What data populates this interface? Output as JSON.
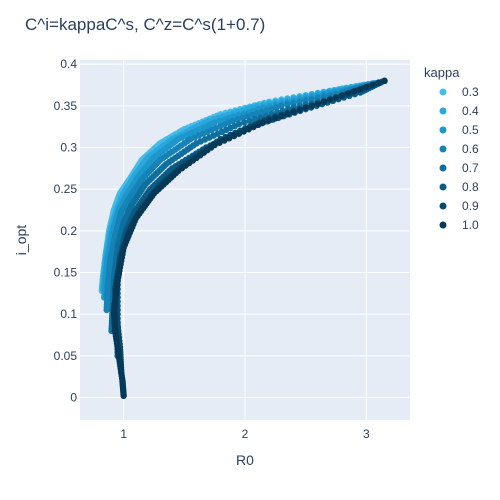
{
  "chart_data": {
    "type": "scatter",
    "title": "C^i=kappaC^s, C^z=C^s(1+0.7)",
    "xlabel": "R0",
    "ylabel": "i_opt",
    "xlim": [
      0.64,
      3.36
    ],
    "ylim": [
      -0.027,
      0.405
    ],
    "x_ticks": [
      1,
      2,
      3
    ],
    "y_ticks": [
      0,
      0.05,
      0.1,
      0.15,
      0.2,
      0.25,
      0.3,
      0.35,
      0.4
    ],
    "x_tick_labels": [
      "1",
      "2",
      "3"
    ],
    "y_tick_labels": [
      "0",
      "0.05",
      "0.1",
      "0.15",
      "0.2",
      "0.25",
      "0.3",
      "0.35",
      "0.4"
    ],
    "grid": true,
    "legend_title": "kappa",
    "legend_placement": "right",
    "series": [
      {
        "name": "0.3",
        "color": "#46bbe8",
        "points": [
          [
            0.82,
            0.128
          ],
          [
            0.83,
            0.145
          ],
          [
            0.85,
            0.17
          ],
          [
            0.88,
            0.2
          ],
          [
            0.92,
            0.225
          ],
          [
            0.97,
            0.245
          ],
          [
            1.05,
            0.262
          ],
          [
            1.15,
            0.285
          ],
          [
            1.3,
            0.305
          ],
          [
            1.5,
            0.322
          ],
          [
            1.8,
            0.34
          ],
          [
            2.2,
            0.355
          ],
          [
            2.7,
            0.368
          ],
          [
            3.05,
            0.377
          ]
        ]
      },
      {
        "name": "0.4",
        "color": "#2aa8de",
        "points": [
          [
            0.83,
            0.13
          ],
          [
            0.84,
            0.15
          ],
          [
            0.86,
            0.175
          ],
          [
            0.9,
            0.205
          ],
          [
            0.95,
            0.228
          ],
          [
            1.0,
            0.245
          ],
          [
            1.1,
            0.268
          ],
          [
            1.2,
            0.288
          ],
          [
            1.4,
            0.31
          ],
          [
            1.7,
            0.332
          ],
          [
            2.1,
            0.35
          ],
          [
            2.6,
            0.365
          ],
          [
            3.06,
            0.377
          ]
        ]
      },
      {
        "name": "0.5",
        "color": "#1d96cc",
        "points": [
          [
            0.84,
            0.12
          ],
          [
            0.85,
            0.145
          ],
          [
            0.87,
            0.17
          ],
          [
            0.91,
            0.2
          ],
          [
            0.96,
            0.225
          ],
          [
            1.02,
            0.242
          ],
          [
            1.12,
            0.265
          ],
          [
            1.25,
            0.288
          ],
          [
            1.45,
            0.31
          ],
          [
            1.75,
            0.33
          ],
          [
            2.15,
            0.348
          ],
          [
            2.65,
            0.364
          ],
          [
            3.08,
            0.377
          ]
        ]
      },
      {
        "name": "0.6",
        "color": "#1583b7",
        "points": [
          [
            0.86,
            0.105
          ],
          [
            0.87,
            0.135
          ],
          [
            0.89,
            0.165
          ],
          [
            0.93,
            0.195
          ],
          [
            0.98,
            0.222
          ],
          [
            1.05,
            0.24
          ],
          [
            1.15,
            0.262
          ],
          [
            1.3,
            0.285
          ],
          [
            1.55,
            0.31
          ],
          [
            1.9,
            0.332
          ],
          [
            2.3,
            0.35
          ],
          [
            2.8,
            0.366
          ],
          [
            3.1,
            0.378
          ]
        ]
      },
      {
        "name": "0.7",
        "color": "#0f6f9e",
        "points": [
          [
            0.9,
            0.08
          ],
          [
            0.91,
            0.11
          ],
          [
            0.92,
            0.145
          ],
          [
            0.95,
            0.18
          ],
          [
            1.0,
            0.21
          ],
          [
            1.07,
            0.232
          ],
          [
            1.18,
            0.256
          ],
          [
            1.35,
            0.28
          ],
          [
            1.6,
            0.305
          ],
          [
            1.95,
            0.328
          ],
          [
            2.4,
            0.348
          ],
          [
            2.9,
            0.366
          ],
          [
            3.12,
            0.378
          ]
        ]
      },
      {
        "name": "0.8",
        "color": "#0b5b84",
        "points": [
          [
            0.95,
            0.05
          ],
          [
            0.95,
            0.09
          ],
          [
            0.95,
            0.14
          ],
          [
            0.97,
            0.17
          ],
          [
            1.02,
            0.2
          ],
          [
            1.1,
            0.225
          ],
          [
            1.22,
            0.25
          ],
          [
            1.4,
            0.275
          ],
          [
            1.68,
            0.3
          ],
          [
            2.05,
            0.325
          ],
          [
            2.5,
            0.346
          ],
          [
            2.95,
            0.366
          ],
          [
            3.13,
            0.379
          ]
        ]
      },
      {
        "name": "0.9",
        "color": "#074a6c",
        "points": [
          [
            0.98,
            0.03
          ],
          [
            0.97,
            0.06
          ],
          [
            0.94,
            0.1
          ],
          [
            0.93,
            0.13
          ],
          [
            0.97,
            0.165
          ],
          [
            1.04,
            0.2
          ],
          [
            1.15,
            0.228
          ],
          [
            1.3,
            0.255
          ],
          [
            1.5,
            0.28
          ],
          [
            1.8,
            0.31
          ],
          [
            2.2,
            0.335
          ],
          [
            2.7,
            0.357
          ],
          [
            3.15,
            0.38
          ]
        ]
      },
      {
        "name": "1.0",
        "color": "#053957",
        "points": [
          [
            1.0,
            0.002
          ],
          [
            0.99,
            0.02
          ],
          [
            0.96,
            0.05
          ],
          [
            0.93,
            0.08
          ],
          [
            0.92,
            0.105
          ],
          [
            0.95,
            0.14
          ],
          [
            1.0,
            0.18
          ],
          [
            1.1,
            0.215
          ],
          [
            1.25,
            0.245
          ],
          [
            1.45,
            0.272
          ],
          [
            1.75,
            0.303
          ],
          [
            2.15,
            0.33
          ],
          [
            2.65,
            0.355
          ],
          [
            3.15,
            0.38
          ]
        ]
      }
    ]
  }
}
